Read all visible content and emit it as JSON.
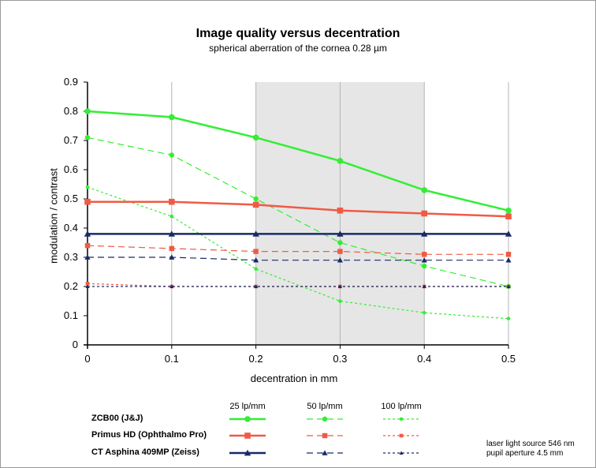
{
  "chart_data": {
    "type": "line",
    "title": "Image quality versus decentration",
    "subtitle": "spherical aberration of the cornea 0.28 µm",
    "xlabel": "decentration in mm",
    "ylabel": "modulation / contrast",
    "xlim": [
      0,
      0.5
    ],
    "ylim": [
      0,
      0.9
    ],
    "x": [
      0,
      0.1,
      0.2,
      0.3,
      0.4,
      0.5
    ],
    "x_tick_labels": [
      "0",
      "0.1",
      "0.2",
      "0.3",
      "0.4",
      "0.5"
    ],
    "y_tick_labels": [
      "0",
      "0.1",
      "0.2",
      "0.3",
      "0.4",
      "0.5",
      "0.6",
      "0.7",
      "0.8",
      "0.9"
    ],
    "shaded_region": [
      0.2,
      0.4
    ],
    "grid": "vertical",
    "series": [
      {
        "lens": "ZCB00 (J&J)",
        "frequency": "25 lp/mm",
        "color": "#33ee33",
        "style": "solid",
        "marker": "circle",
        "values": [
          0.8,
          0.78,
          0.71,
          0.63,
          0.53,
          0.46
        ]
      },
      {
        "lens": "ZCB00 (J&J)",
        "frequency": "50 lp/mm",
        "color": "#33ee33",
        "style": "dashed",
        "marker": "circle",
        "values": [
          0.71,
          0.65,
          0.5,
          0.35,
          0.27,
          0.2
        ]
      },
      {
        "lens": "ZCB00 (J&J)",
        "frequency": "100 lp/mm",
        "color": "#33ee33",
        "style": "dotted",
        "marker": "circle",
        "values": [
          0.54,
          0.44,
          0.26,
          0.15,
          0.11,
          0.09
        ]
      },
      {
        "lens": "Primus HD (Ophthalmo Pro)",
        "frequency": "25 lp/mm",
        "color": "#f05a45",
        "style": "solid",
        "marker": "square",
        "values": [
          0.49,
          0.49,
          0.48,
          0.46,
          0.45,
          0.44
        ]
      },
      {
        "lens": "Primus HD (Ophthalmo Pro)",
        "frequency": "50 lp/mm",
        "color": "#f05a45",
        "style": "dashed",
        "marker": "square",
        "values": [
          0.34,
          0.33,
          0.32,
          0.32,
          0.31,
          0.31
        ]
      },
      {
        "lens": "Primus HD (Ophthalmo Pro)",
        "frequency": "100 lp/mm",
        "color": "#f05a45",
        "style": "dotted",
        "marker": "square",
        "values": [
          0.21,
          0.2,
          0.2,
          0.2,
          0.2,
          0.2
        ]
      },
      {
        "lens": "CT Asphina 409MP (Zeiss)",
        "frequency": "25 lp/mm",
        "color": "#1a2a66",
        "style": "solid",
        "marker": "triangle",
        "values": [
          0.38,
          0.38,
          0.38,
          0.38,
          0.38,
          0.38
        ]
      },
      {
        "lens": "CT Asphina 409MP (Zeiss)",
        "frequency": "50 lp/mm",
        "color": "#1a2a66",
        "style": "dashed",
        "marker": "triangle",
        "values": [
          0.3,
          0.3,
          0.29,
          0.29,
          0.29,
          0.29
        ]
      },
      {
        "lens": "CT Asphina 409MP (Zeiss)",
        "frequency": "100 lp/mm",
        "color": "#1a2a66",
        "style": "dotted",
        "marker": "triangle",
        "values": [
          0.2,
          0.2,
          0.2,
          0.2,
          0.2,
          0.2
        ]
      }
    ],
    "legend": {
      "placement": "bottom",
      "columns": [
        "25 lp/mm",
        "50 lp/mm",
        "100 lp/mm"
      ],
      "rows": [
        "ZCB00 (J&J)",
        "Primus HD (Ophthalmo Pro)",
        "CT Asphina 409MP (Zeiss)"
      ]
    },
    "notes": [
      "laser light source 546 nm",
      "pupil aperture 4.5 mm"
    ]
  }
}
